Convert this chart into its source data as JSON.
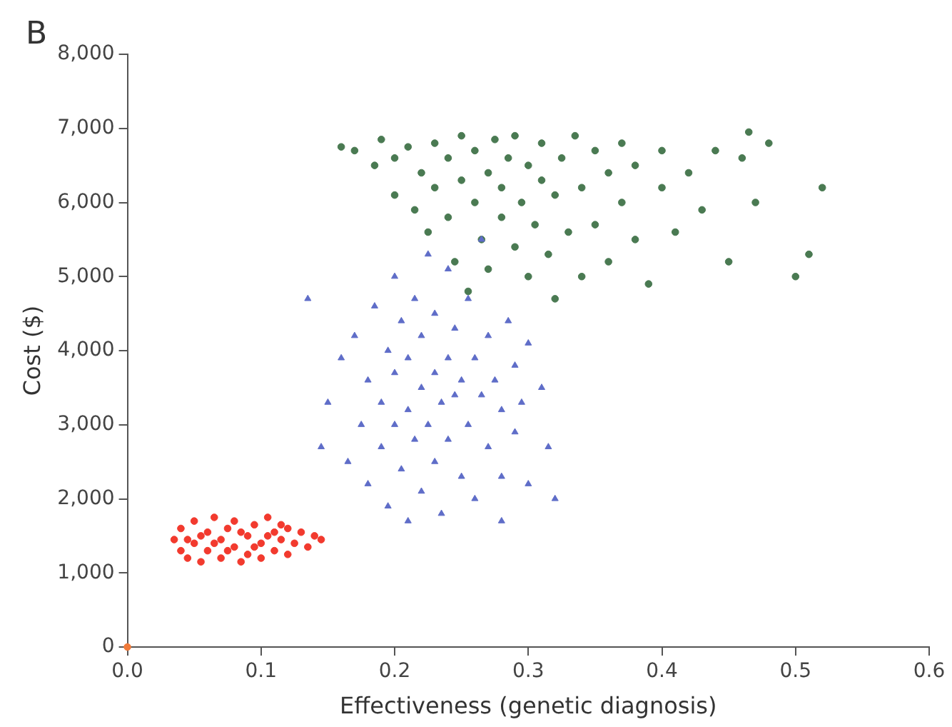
{
  "chart_data": {
    "type": "scatter",
    "xlabel": "Effectiveness (genetic diagnosis)",
    "ylabel": "Cost ($)",
    "annotations": [
      "B"
    ],
    "xlim": [
      0,
      0.6
    ],
    "xticks": [
      {
        "value": 0,
        "label": "0.0"
      },
      0.1,
      0.2,
      0.3,
      0.4,
      0.5,
      0.6
    ],
    "ylim": [
      0,
      8000
    ],
    "yticks": [
      0,
      {
        "value": 1000,
        "label": "1,000"
      },
      {
        "value": 2000,
        "label": "2,000"
      },
      {
        "value": 3000,
        "label": "3,000"
      },
      {
        "value": 4000,
        "label": "4,000"
      },
      {
        "value": 5000,
        "label": "5,000"
      },
      {
        "value": 6000,
        "label": "6,000"
      },
      {
        "value": 7000,
        "label": "7,000"
      },
      {
        "value": 8000,
        "label": "8,000"
      }
    ],
    "grid": false,
    "legend": false,
    "marker": "circle",
    "series": [
      {
        "color": "#f07a3a",
        "x": [
          0
        ],
        "values": [
          0
        ]
      },
      {
        "color": "#f23a2e",
        "x": [
          0.035,
          0.04,
          0.04,
          0.045,
          0.05,
          0.05,
          0.055,
          0.06,
          0.06,
          0.065,
          0.07,
          0.07,
          0.075,
          0.08,
          0.08,
          0.085,
          0.09,
          0.09,
          0.095,
          0.1,
          0.1,
          0.105,
          0.11,
          0.11,
          0.115,
          0.12,
          0.12,
          0.125,
          0.13,
          0.135,
          0.14,
          0.145,
          0.065,
          0.075,
          0.085,
          0.095,
          0.055,
          0.105,
          0.045,
          0.115
        ],
        "values": [
          1450,
          1300,
          1600,
          1200,
          1700,
          1400,
          1150,
          1550,
          1300,
          1750,
          1450,
          1200,
          1600,
          1350,
          1700,
          1150,
          1500,
          1250,
          1650,
          1400,
          1200,
          1750,
          1550,
          1300,
          1450,
          1250,
          1600,
          1400,
          1550,
          1350,
          1500,
          1450,
          1400,
          1300,
          1550,
          1350,
          1500,
          1500,
          1450,
          1650
        ]
      },
      {
        "color": "#5f6dc8",
        "marker": "triangle",
        "x": [
          0.135,
          0.145,
          0.15,
          0.16,
          0.165,
          0.17,
          0.175,
          0.18,
          0.18,
          0.185,
          0.19,
          0.19,
          0.195,
          0.195,
          0.2,
          0.2,
          0.2,
          0.205,
          0.205,
          0.21,
          0.21,
          0.21,
          0.215,
          0.215,
          0.22,
          0.22,
          0.22,
          0.225,
          0.225,
          0.23,
          0.23,
          0.23,
          0.235,
          0.235,
          0.24,
          0.24,
          0.24,
          0.245,
          0.245,
          0.25,
          0.25,
          0.255,
          0.255,
          0.26,
          0.26,
          0.265,
          0.265,
          0.27,
          0.27,
          0.275,
          0.28,
          0.28,
          0.285,
          0.29,
          0.29,
          0.295,
          0.3,
          0.3,
          0.31,
          0.315,
          0.32,
          0.28
        ],
        "values": [
          4700,
          2700,
          3300,
          3900,
          2500,
          4200,
          3000,
          2200,
          3600,
          4600,
          2700,
          3300,
          4000,
          1900,
          5000,
          3000,
          3700,
          2400,
          4400,
          3200,
          1700,
          3900,
          2800,
          4700,
          3500,
          2100,
          4200,
          5300,
          3000,
          3700,
          2500,
          4500,
          3300,
          1800,
          3900,
          2800,
          5100,
          3400,
          4300,
          2300,
          3600,
          4700,
          3000,
          3900,
          2000,
          3400,
          5500,
          2700,
          4200,
          3600,
          3200,
          2300,
          4400,
          3800,
          2900,
          3300,
          2200,
          4100,
          3500,
          2700,
          2000,
          1700
        ]
      },
      {
        "color": "#4a7a52",
        "x": [
          0.16,
          0.17,
          0.185,
          0.19,
          0.2,
          0.2,
          0.21,
          0.215,
          0.22,
          0.225,
          0.23,
          0.23,
          0.24,
          0.24,
          0.245,
          0.25,
          0.25,
          0.255,
          0.26,
          0.26,
          0.265,
          0.27,
          0.27,
          0.275,
          0.28,
          0.28,
          0.285,
          0.29,
          0.29,
          0.295,
          0.3,
          0.3,
          0.305,
          0.31,
          0.31,
          0.315,
          0.32,
          0.32,
          0.325,
          0.33,
          0.335,
          0.34,
          0.34,
          0.35,
          0.35,
          0.36,
          0.36,
          0.37,
          0.37,
          0.38,
          0.38,
          0.39,
          0.4,
          0.4,
          0.41,
          0.42,
          0.43,
          0.44,
          0.45,
          0.46,
          0.465,
          0.47,
          0.48,
          0.5,
          0.51,
          0.52
        ],
        "values": [
          6750,
          6700,
          6500,
          6850,
          6600,
          6100,
          6750,
          5900,
          6400,
          5600,
          6800,
          6200,
          5800,
          6600,
          5200,
          6900,
          6300,
          4800,
          6000,
          6700,
          5500,
          6400,
          5100,
          6850,
          5800,
          6200,
          6600,
          5400,
          6900,
          6000,
          6500,
          5000,
          5700,
          6300,
          6800,
          5300,
          6100,
          4700,
          6600,
          5600,
          6900,
          6200,
          5000,
          6700,
          5700,
          6400,
          5200,
          6000,
          6800,
          5500,
          6500,
          4900,
          6200,
          6700,
          5600,
          6400,
          5900,
          6700,
          5200,
          6600,
          6950,
          6000,
          6800,
          5000,
          5300,
          6200
        ]
      }
    ]
  }
}
